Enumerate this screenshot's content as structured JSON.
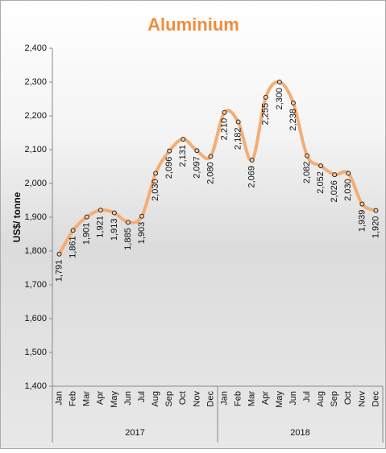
{
  "chart_data": {
    "type": "line",
    "title": "Aluminium",
    "y_label": "US$/ tonne",
    "categories": [
      "Jan",
      "Feb",
      "Mar",
      "Apr",
      "May",
      "Jun",
      "Jul",
      "Aug",
      "Sep",
      "Oct",
      "Nov",
      "Dec",
      "Jan",
      "Feb",
      "Mar",
      "Apr",
      "May",
      "Jun",
      "Jul",
      "Aug",
      "Sep",
      "Oct",
      "Nov",
      "Dec"
    ],
    "x_groups": [
      "2017",
      "2018"
    ],
    "values": [
      1791,
      1861,
      1901,
      1921,
      1913,
      1885,
      1903,
      2030,
      2096,
      2131,
      2097,
      2080,
      2210,
      2182,
      2069,
      2255,
      2300,
      2238,
      2082,
      2052,
      2026,
      2030,
      1939,
      1920
    ],
    "value_labels": [
      "1,791",
      "1,861",
      "1,901",
      "1,921",
      "1,913",
      "1,885",
      "1,903",
      "2,030",
      "2,096",
      "2,131",
      "2,097",
      "2,080",
      "2,210",
      "2,182",
      "2,069",
      "2,255",
      "2,300",
      "2,238",
      "2,082",
      "2,052",
      "2,026",
      "2,030",
      "1,939",
      "1,920"
    ],
    "color": "#f4ad74",
    "ylim": [
      1400,
      2400
    ],
    "yticks": [
      {
        "value": 1400,
        "label": "1,400"
      },
      {
        "value": 1500,
        "label": "1,500"
      },
      {
        "value": 1600,
        "label": "1,600"
      },
      {
        "value": 1700,
        "label": "1,700"
      },
      {
        "value": 1800,
        "label": "1,800"
      },
      {
        "value": 1900,
        "label": "1,900"
      },
      {
        "value": 2000,
        "label": "2,000"
      },
      {
        "value": 2100,
        "label": "2,100"
      },
      {
        "value": 2200,
        "label": "2,200"
      },
      {
        "value": 2300,
        "label": "2,300"
      },
      {
        "value": 2400,
        "label": "2,400"
      }
    ],
    "grid": false
  }
}
